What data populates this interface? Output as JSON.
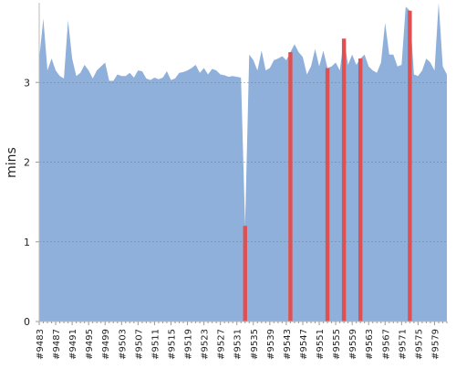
{
  "chart_data": {
    "type": "area",
    "y_label": "mins",
    "categories": [
      "#9483",
      null,
      null,
      null,
      "#9487",
      null,
      null,
      null,
      "#9491",
      null,
      null,
      null,
      "#9495",
      null,
      null,
      null,
      "#9499",
      null,
      null,
      null,
      "#9503",
      null,
      null,
      null,
      "#9507",
      null,
      null,
      null,
      "#9511",
      null,
      null,
      null,
      "#9515",
      null,
      null,
      null,
      "#9519",
      null,
      null,
      null,
      "#9523",
      null,
      null,
      null,
      "#9527",
      null,
      null,
      null,
      "#9531",
      null,
      null,
      null,
      "#9535",
      null,
      null,
      null,
      "#9539",
      null,
      null,
      null,
      "#9543",
      null,
      null,
      null,
      "#9547",
      null,
      null,
      null,
      "#9551",
      null,
      null,
      null,
      "#9555",
      null,
      null,
      null,
      "#9559",
      null,
      null,
      null,
      "#9563",
      null,
      null,
      null,
      "#9567",
      null,
      null,
      null,
      "#9571",
      null,
      null,
      null,
      "#9575",
      null,
      null,
      null,
      "#9579",
      null,
      null,
      null
    ],
    "series": [
      {
        "type": "area",
        "color": "#8eb0da",
        "values": [
          3.3,
          3.8,
          3.15,
          3.3,
          3.15,
          3.08,
          3.05,
          3.78,
          3.3,
          3.08,
          3.12,
          3.22,
          3.15,
          3.05,
          3.15,
          3.2,
          3.25,
          3.02,
          3.02,
          3.1,
          3.08,
          3.08,
          3.12,
          3.06,
          3.15,
          3.14,
          3.05,
          3.03,
          3.06,
          3.04,
          3.06,
          3.14,
          3.03,
          3.05,
          3.12,
          3.13,
          3.15,
          3.18,
          3.22,
          3.12,
          3.18,
          3.1,
          3.17,
          3.15,
          3.1,
          3.09,
          3.07,
          3.08,
          3.07,
          3.06,
          1.2,
          3.35,
          3.28,
          3.15,
          3.4,
          3.15,
          3.18,
          3.28,
          3.3,
          3.33,
          3.28,
          3.38,
          3.48,
          3.38,
          3.32,
          3.1,
          3.2,
          3.42,
          3.2,
          3.4,
          3.18,
          3.2,
          3.25,
          3.15,
          3.55,
          3.22,
          3.35,
          3.22,
          3.3,
          3.35,
          3.2,
          3.15,
          3.12,
          3.25,
          3.75,
          3.35,
          3.35,
          3.2,
          3.22,
          3.95,
          3.9,
          3.1,
          3.08,
          3.15,
          3.3,
          3.25,
          3.15,
          4.0,
          3.2,
          3.1
        ]
      },
      {
        "type": "bar",
        "color": "#e05050",
        "values": [
          null,
          null,
          null,
          null,
          null,
          null,
          null,
          null,
          null,
          null,
          null,
          null,
          null,
          null,
          null,
          null,
          null,
          null,
          null,
          null,
          null,
          null,
          null,
          null,
          null,
          null,
          null,
          null,
          null,
          null,
          null,
          null,
          null,
          null,
          null,
          null,
          null,
          null,
          null,
          null,
          null,
          null,
          null,
          null,
          null,
          null,
          null,
          null,
          null,
          null,
          1.2,
          null,
          null,
          null,
          null,
          null,
          null,
          null,
          null,
          null,
          null,
          3.38,
          null,
          null,
          null,
          null,
          null,
          null,
          null,
          null,
          3.18,
          null,
          null,
          null,
          3.55,
          null,
          null,
          null,
          3.3,
          null,
          null,
          null,
          null,
          null,
          null,
          null,
          null,
          null,
          null,
          null,
          3.9,
          null,
          null,
          null,
          null,
          null,
          null,
          null,
          null,
          null
        ]
      }
    ],
    "ylim": [
      0,
      4
    ],
    "yticks": [
      0,
      1,
      2,
      3
    ],
    "grid": true
  }
}
